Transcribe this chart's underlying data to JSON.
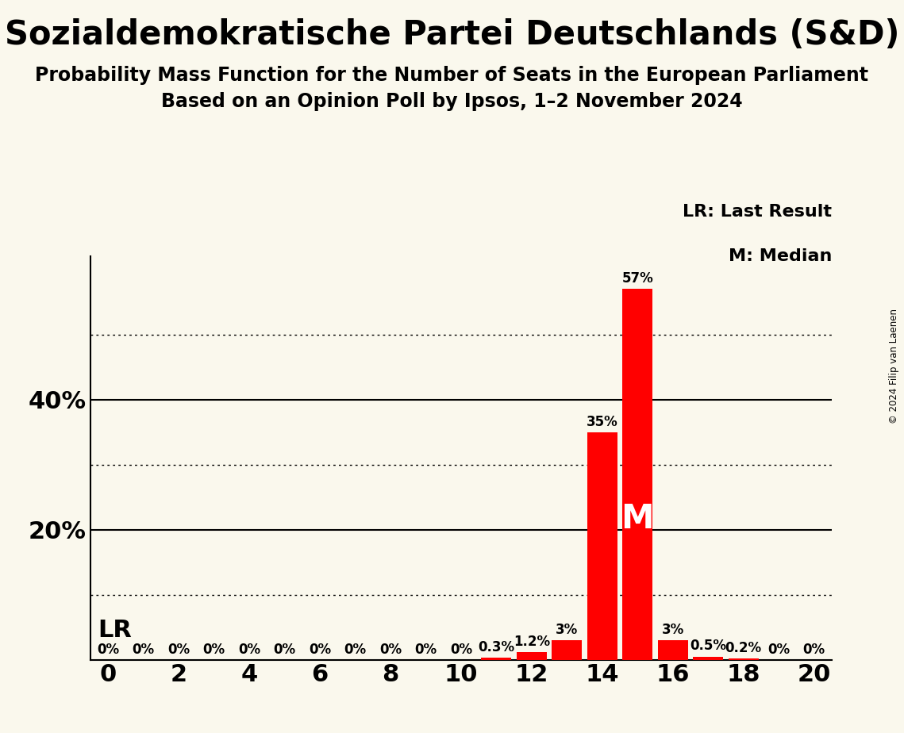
{
  "title": "Sozialdemokratische Partei Deutschlands (S&D)",
  "subtitle1": "Probability Mass Function for the Number of Seats in the European Parliament",
  "subtitle2": "Based on an Opinion Poll by Ipsos, 1–2 November 2024",
  "copyright": "© 2024 Filip van Laenen",
  "x_min": -0.5,
  "x_max": 20.5,
  "x_ticks": [
    0,
    2,
    4,
    6,
    8,
    10,
    12,
    14,
    16,
    18,
    20
  ],
  "y_ticks_solid": [
    20,
    40
  ],
  "y_ticks_dotted": [
    10,
    30,
    50
  ],
  "ylim_max": 62,
  "seats": [
    0,
    1,
    2,
    3,
    4,
    5,
    6,
    7,
    8,
    9,
    10,
    11,
    12,
    13,
    14,
    15,
    16,
    17,
    18,
    19,
    20
  ],
  "probabilities": [
    0,
    0,
    0,
    0,
    0,
    0,
    0,
    0,
    0,
    0,
    0,
    0.3,
    1.2,
    3.0,
    35.0,
    57.0,
    3.0,
    0.5,
    0.2,
    0,
    0
  ],
  "bar_labels": [
    "0%",
    "0%",
    "0%",
    "0%",
    "0%",
    "0%",
    "0%",
    "0%",
    "0%",
    "0%",
    "0%",
    "0.3%",
    "1.2%",
    "3%",
    "35%",
    "57%",
    "3%",
    "0.5%",
    "0.2%",
    "0%",
    "0%"
  ],
  "bar_color": "#ff0000",
  "background_color": "#faf8ed",
  "median_seat": 15,
  "median_label": "M",
  "lr_seat": 14,
  "lr_label": "LR",
  "legend_lr": "LR: Last Result",
  "legend_m": "M: Median",
  "title_fontsize": 30,
  "subtitle_fontsize": 17,
  "axis_label_fontsize": 22,
  "bar_label_fontsize": 12,
  "m_label_fontsize": 30,
  "lr_text_fontsize": 22,
  "legend_fontsize": 16
}
